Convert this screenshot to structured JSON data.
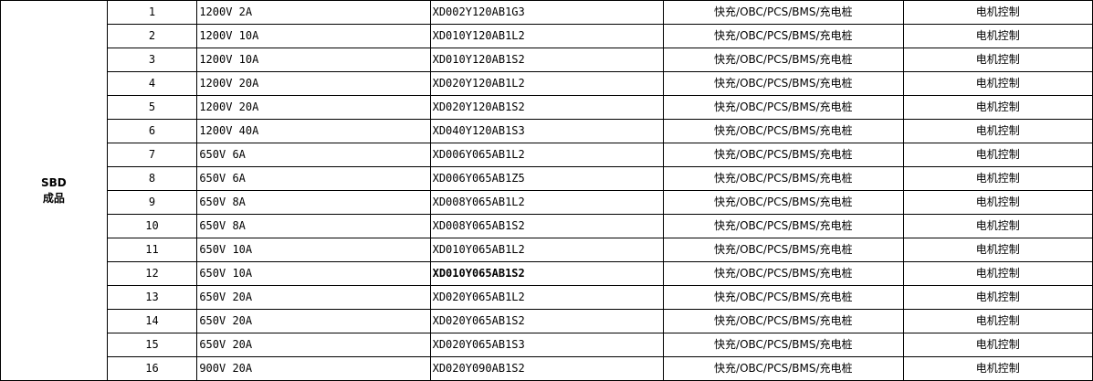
{
  "category": {
    "line1": "SBD",
    "line2": "成品"
  },
  "rows": [
    {
      "no": "1",
      "spec": "1200V 2A",
      "part": "XD002Y120AB1G3",
      "application": "快充/OBC/PCS/BMS/充电桩",
      "use": "电机控制"
    },
    {
      "no": "2",
      "spec": "1200V 10A",
      "part": "XD010Y120AB1L2",
      "application": "快充/OBC/PCS/BMS/充电桩",
      "use": "电机控制"
    },
    {
      "no": "3",
      "spec": "1200V 10A",
      "part": "XD010Y120AB1S2",
      "application": "快充/OBC/PCS/BMS/充电桩",
      "use": "电机控制"
    },
    {
      "no": "4",
      "spec": "1200V 20A",
      "part": "XD020Y120AB1L2",
      "application": "快充/OBC/PCS/BMS/充电桩",
      "use": "电机控制"
    },
    {
      "no": "5",
      "spec": "1200V 20A",
      "part": "XD020Y120AB1S2",
      "application": "快充/OBC/PCS/BMS/充电桩",
      "use": "电机控制"
    },
    {
      "no": "6",
      "spec": "1200V 40A",
      "part": "XD040Y120AB1S3",
      "application": "快充/OBC/PCS/BMS/充电桩",
      "use": "电机控制"
    },
    {
      "no": "7",
      "spec": "650V 6A",
      "part": "XD006Y065AB1L2",
      "application": "快充/OBC/PCS/BMS/充电桩",
      "use": "电机控制"
    },
    {
      "no": "8",
      "spec": "650V 6A",
      "part": "XD006Y065AB1Z5",
      "application": "快充/OBC/PCS/BMS/充电桩",
      "use": "电机控制"
    },
    {
      "no": "9",
      "spec": "650V 8A",
      "part": "XD008Y065AB1L2",
      "application": "快充/OBC/PCS/BMS/充电桩",
      "use": "电机控制"
    },
    {
      "no": "10",
      "spec": "650V 8A",
      "part": "XD008Y065AB1S2",
      "application": "快充/OBC/PCS/BMS/充电桩",
      "use": "电机控制"
    },
    {
      "no": "11",
      "spec": "650V 10A",
      "part": "XD010Y065AB1L2",
      "application": "快充/OBC/PCS/BMS/充电桩",
      "use": "电机控制"
    },
    {
      "no": "12",
      "spec": "650V 10A",
      "part": "XD010Y065AB1S2",
      "part_bold": true,
      "application": "快充/OBC/PCS/BMS/充电桩",
      "use": "电机控制"
    },
    {
      "no": "13",
      "spec": "650V 20A",
      "part": "XD020Y065AB1L2",
      "application": "快充/OBC/PCS/BMS/充电桩",
      "use": "电机控制"
    },
    {
      "no": "14",
      "spec": "650V 20A",
      "part": "XD020Y065AB1S2",
      "application": "快充/OBC/PCS/BMS/充电桩",
      "use": "电机控制"
    },
    {
      "no": "15",
      "spec": "650V 20A",
      "part": "XD020Y065AB1S3",
      "application": "快充/OBC/PCS/BMS/充电桩",
      "use": "电机控制"
    },
    {
      "no": "16",
      "spec": "900V 20A",
      "part": "XD020Y090AB1S2",
      "application": "快充/OBC/PCS/BMS/充电桩",
      "use": "电机控制"
    }
  ]
}
